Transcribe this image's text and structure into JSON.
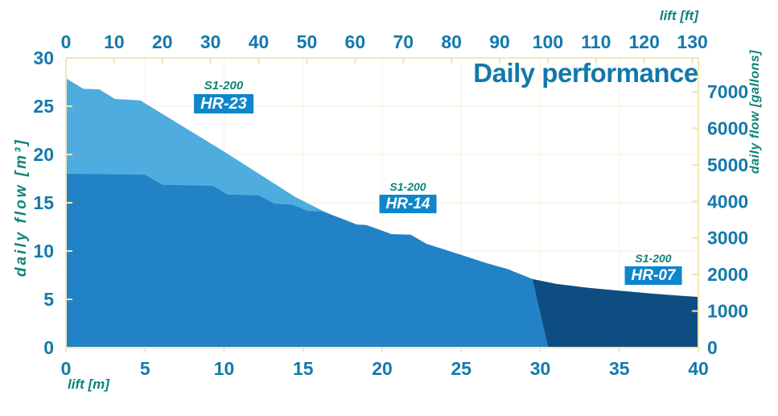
{
  "chart_data": {
    "type": "area",
    "title": "Daily performance",
    "x_axis_bottom": {
      "label": "lift [m]",
      "min": 0,
      "max": 40,
      "tick_step": 5,
      "ticks": [
        0,
        5,
        10,
        15,
        20,
        25,
        30,
        35,
        40
      ]
    },
    "x_axis_top": {
      "label": "lift [ft]",
      "min": 0,
      "max": 130,
      "tick_step": 10,
      "ticks": [
        0,
        10,
        20,
        30,
        40,
        50,
        60,
        70,
        80,
        90,
        100,
        110,
        120,
        130
      ],
      "meters_per_ft": 0.3048
    },
    "y_axis_left": {
      "label": "daily flow [m³]",
      "min": 0,
      "max": 30,
      "tick_step": 5,
      "ticks": [
        0,
        5,
        10,
        15,
        20,
        25,
        30
      ]
    },
    "y_axis_right": {
      "label": "daily flow [gallons]",
      "min": 0,
      "tick_step": 1000,
      "ticks": [
        0,
        1000,
        2000,
        3000,
        4000,
        5000,
        6000,
        7000
      ],
      "gallons_per_m3": 264.17
    },
    "grid": "on",
    "series": [
      {
        "name": "S1-200 HR-23",
        "model": "S1-200",
        "variant": "HR-23",
        "color": "#4EACDF",
        "points": [
          [
            0,
            27.9
          ],
          [
            1.1,
            26.8
          ],
          [
            2.1,
            26.75
          ],
          [
            3.1,
            25.75
          ],
          [
            4.7,
            25.6
          ],
          [
            10,
            20.3
          ],
          [
            14.5,
            15.6
          ],
          [
            16.2,
            14.2
          ],
          [
            17,
            13.6
          ]
        ],
        "base": [
          [
            17,
            0
          ],
          [
            0,
            0
          ]
        ]
      },
      {
        "name": "S1-200 HR-14",
        "model": "S1-200",
        "variant": "HR-14",
        "color": "#2182C6",
        "points": [
          [
            0,
            18
          ],
          [
            5,
            17.9
          ],
          [
            6.1,
            16.85
          ],
          [
            9.3,
            16.75
          ],
          [
            10.2,
            15.85
          ],
          [
            12.2,
            15.75
          ],
          [
            13.2,
            14.9
          ],
          [
            14.3,
            14.8
          ],
          [
            15.3,
            14.15
          ],
          [
            16.2,
            14.1
          ],
          [
            16.9,
            13.7
          ],
          [
            18.4,
            12.75
          ],
          [
            19,
            12.7
          ],
          [
            20.6,
            11.75
          ],
          [
            21.8,
            11.7
          ],
          [
            22.8,
            10.75
          ],
          [
            25,
            9.6
          ],
          [
            26.5,
            8.8
          ],
          [
            28,
            8.1
          ],
          [
            29.5,
            7.1
          ],
          [
            30.5,
            0
          ]
        ],
        "base": [
          [
            0,
            0
          ]
        ]
      },
      {
        "name": "S1-200 HR-07",
        "model": "S1-200",
        "variant": "HR-07",
        "color": "#0D4D81",
        "points": [
          [
            29.5,
            7.1
          ],
          [
            31,
            6.6
          ],
          [
            33,
            6.2
          ],
          [
            35,
            5.9
          ],
          [
            37,
            5.6
          ],
          [
            39,
            5.35
          ],
          [
            40,
            5.25
          ]
        ],
        "base": [
          [
            40,
            0
          ],
          [
            30.5,
            0
          ]
        ]
      }
    ],
    "colors": {
      "background": "#FFFFFF",
      "frame": "#F2E7BC",
      "grid": "#F8F2DE",
      "tick": "#F0E4B2",
      "tick_label": "#1579AB",
      "title": "#1278A8",
      "axis_title": "#0D8478",
      "badge_bg": "#0E86CB",
      "badge_text": "#FFFFFF"
    }
  }
}
